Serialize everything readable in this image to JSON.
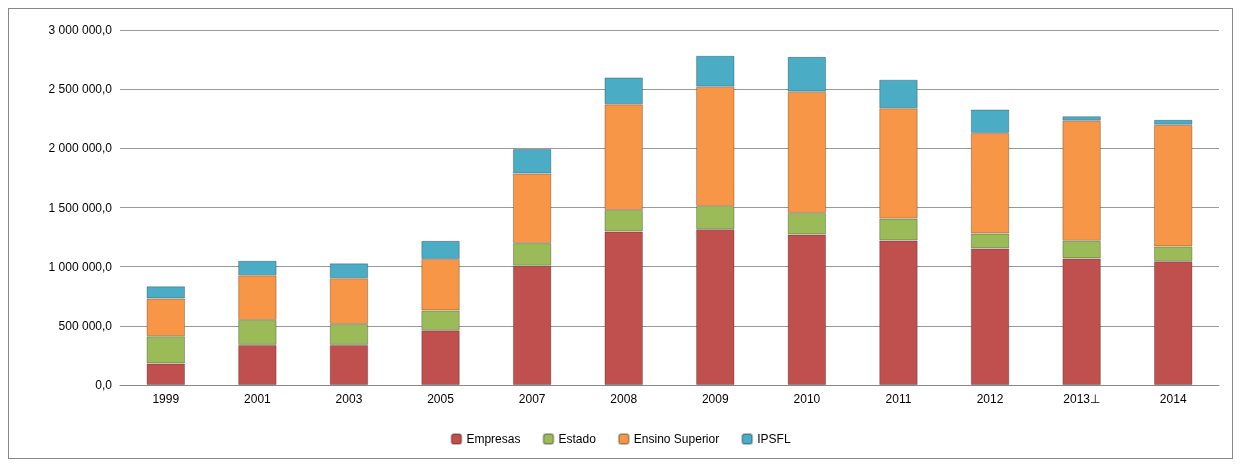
{
  "chart_data": {
    "type": "bar",
    "stacked": true,
    "categories": [
      "1999",
      "2001",
      "2003",
      "2005",
      "2007",
      "2008",
      "2009",
      "2010",
      "2011",
      "2012",
      "2013⊥",
      "2014"
    ],
    "series": [
      {
        "name": "Empresas",
        "color": "#c0504d",
        "values": [
          182000,
          339000,
          339000,
          462000,
          1008000,
          1297000,
          1317000,
          1272000,
          1221000,
          1154000,
          1070000,
          1045000
        ]
      },
      {
        "name": "Estado",
        "color": "#9bbb59",
        "values": [
          230000,
          210000,
          176000,
          168000,
          191000,
          182000,
          196000,
          182000,
          185000,
          126000,
          148000,
          126000
        ]
      },
      {
        "name": "Ensino Superior",
        "color": "#f79646",
        "values": [
          319000,
          378000,
          387000,
          435000,
          588000,
          893000,
          1008000,
          1025000,
          933000,
          849000,
          1015000,
          1028000
        ]
      },
      {
        "name": "IPSFL",
        "color": "#4bacc6",
        "values": [
          103000,
          123000,
          126000,
          153000,
          207000,
          227000,
          261000,
          294000,
          241000,
          199000,
          39000,
          42000
        ]
      }
    ],
    "ylim": [
      0,
      3000000
    ],
    "yticks": [
      {
        "value": 0,
        "label": "0,0"
      },
      {
        "value": 500000,
        "label": "500 000,0"
      },
      {
        "value": 1000000,
        "label": "1 000 000,0"
      },
      {
        "value": 1500000,
        "label": "1 500 000,0"
      },
      {
        "value": 2000000,
        "label": "2 000 000,0"
      },
      {
        "value": 2500000,
        "label": "2 500 000,0"
      },
      {
        "value": 3000000,
        "label": "3 000 000,0"
      }
    ],
    "grid": "y",
    "legend": "bottom"
  }
}
